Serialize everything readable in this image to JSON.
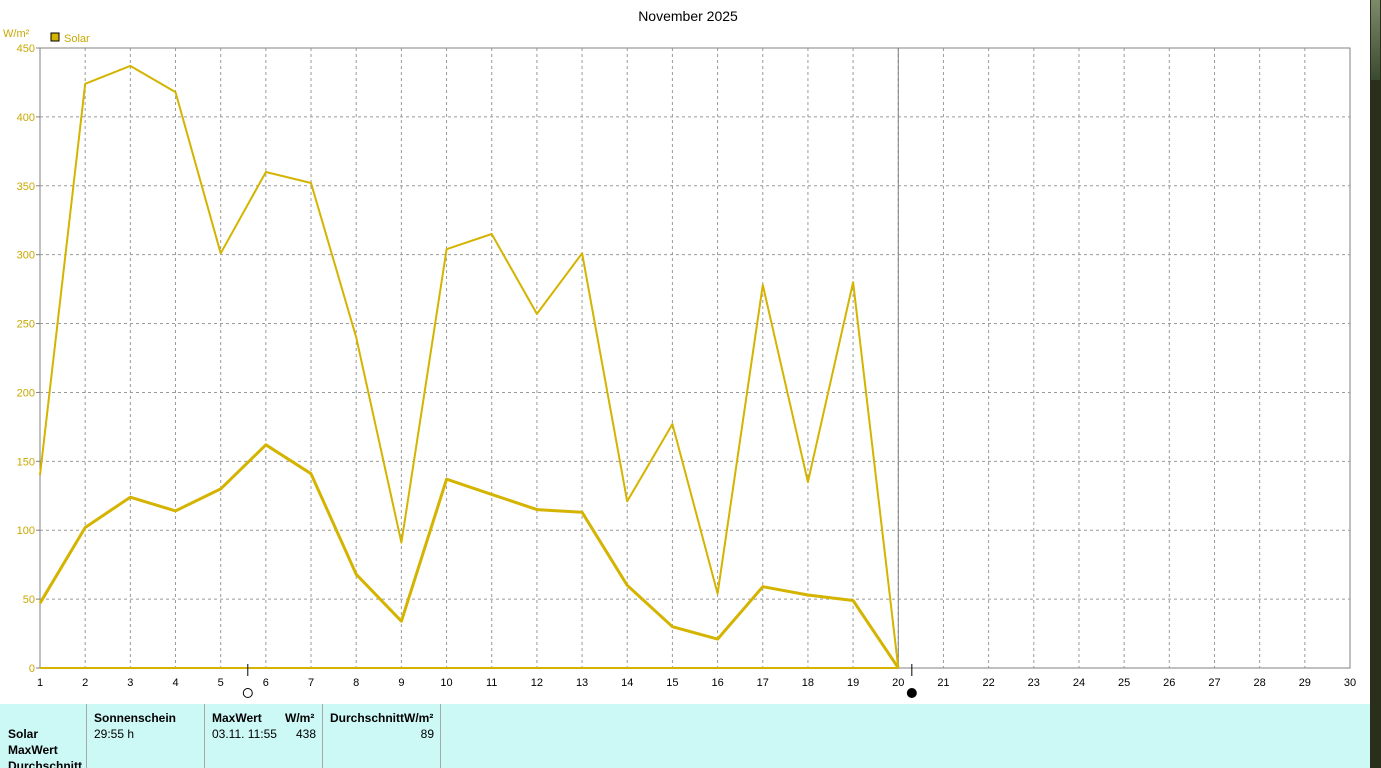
{
  "chart_data": {
    "type": "line",
    "title": "November 2025",
    "ylabel": "W/m²",
    "xlabel": "",
    "legend": {
      "label": "Solar",
      "color": "#d4b400",
      "placement": "top-left"
    },
    "x": [
      1,
      2,
      3,
      4,
      5,
      6,
      7,
      8,
      9,
      10,
      11,
      12,
      13,
      14,
      15,
      16,
      17,
      18,
      19,
      20
    ],
    "xlim": [
      1,
      30
    ],
    "ylim": [
      0,
      450
    ],
    "xticks": [
      1,
      2,
      3,
      4,
      5,
      6,
      7,
      8,
      9,
      10,
      11,
      12,
      13,
      14,
      15,
      16,
      17,
      18,
      19,
      20,
      21,
      22,
      23,
      24,
      25,
      26,
      27,
      28,
      29,
      30
    ],
    "yticks": [
      0,
      50,
      100,
      150,
      200,
      250,
      300,
      350,
      400,
      450
    ],
    "grid": true,
    "series": [
      {
        "values": [
          140,
          424,
          437,
          418,
          301,
          360,
          352,
          240,
          91,
          304,
          315,
          257,
          301,
          121,
          177,
          54,
          278,
          135,
          280,
          0
        ]
      },
      {
        "values": [
          47,
          102,
          124,
          114,
          130,
          162,
          141,
          68,
          34,
          137,
          126,
          115,
          113,
          60,
          30,
          21,
          59,
          53,
          49,
          0
        ]
      }
    ],
    "current_day": 20,
    "moon_markers": [
      {
        "day": 5.6,
        "symbol": "full-moon-icon"
      },
      {
        "day": 20.3,
        "symbol": "new-moon-icon"
      }
    ]
  },
  "summary": {
    "row_labels": [
      "Solar",
      "MaxWert",
      "Durchschnitt"
    ],
    "sunshine": {
      "header": "Sonnenschein",
      "value": "29:55 h"
    },
    "max": {
      "header": "MaxWert",
      "unit": "W/m²",
      "datetime": "03.11.  11:55",
      "value": "438"
    },
    "average": {
      "header": "DurchschnittW/m²",
      "value": "89"
    }
  }
}
